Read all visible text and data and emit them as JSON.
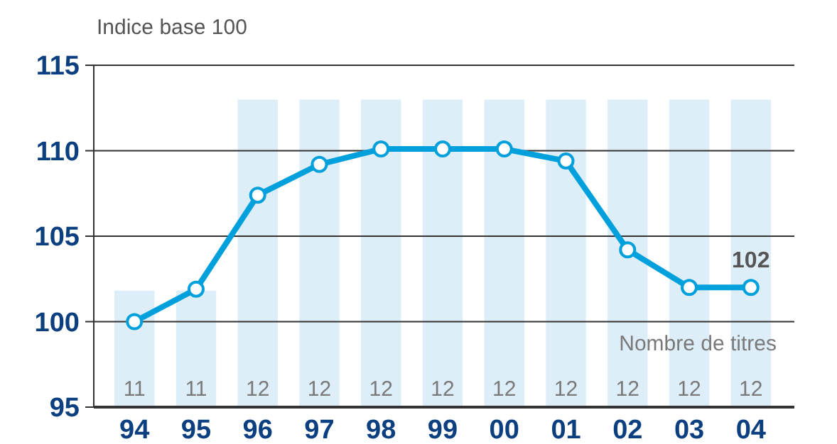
{
  "chart_data": {
    "type": "line",
    "ylabel": "Indice base 100",
    "categories": [
      "94",
      "95",
      "96",
      "97",
      "98",
      "99",
      "00",
      "01",
      "02",
      "03",
      "04"
    ],
    "series": [
      {
        "type": "bar",
        "axis": "y2",
        "color": "#ddeef9",
        "values": [
          11,
          11,
          12,
          12,
          12,
          12,
          12,
          12,
          12,
          12,
          12
        ],
        "value_labels": [
          "11",
          "11",
          "12",
          "12",
          "12",
          "12",
          "12",
          "12",
          "12",
          "12",
          "12"
        ]
      },
      {
        "color": "#00a0dc",
        "values": [
          100,
          101.9,
          107.4,
          109.2,
          110.1,
          110.1,
          110.1,
          109.4,
          104.2,
          102,
          102
        ]
      }
    ],
    "ylim": [
      95,
      115
    ],
    "yticks": [
      95,
      100,
      105,
      110,
      115
    ],
    "y2lim": [
      10.39,
      12.18
    ],
    "grid": "y",
    "marker": "circle",
    "line_style": "solid",
    "tick_labels": "xy",
    "annotations": [
      {
        "text": "102",
        "x": "04",
        "y": 102
      },
      "Nombre de titres"
    ]
  }
}
